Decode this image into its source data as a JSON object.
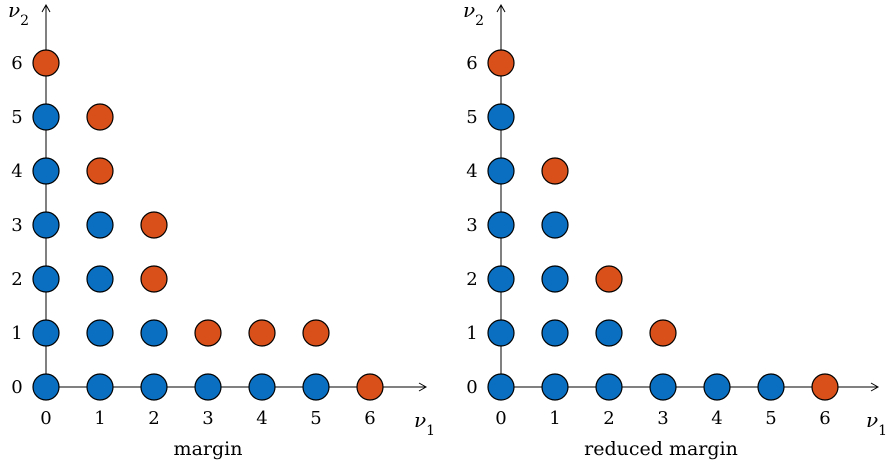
{
  "colors": {
    "interior": "#0a6fc0",
    "boundary": "#d9501a"
  },
  "panels": [
    {
      "caption": "margin",
      "x_axis_label": "ν",
      "x_axis_sub": "1",
      "y_axis_label": "ν",
      "y_axis_sub": "2",
      "x_ticks": [
        "0",
        "1",
        "2",
        "3",
        "4",
        "5",
        "6"
      ],
      "y_ticks": [
        "0",
        "1",
        "2",
        "3",
        "4",
        "5",
        "6"
      ],
      "points": [
        {
          "x": 0,
          "y": 0,
          "kind": "interior"
        },
        {
          "x": 1,
          "y": 0,
          "kind": "interior"
        },
        {
          "x": 2,
          "y": 0,
          "kind": "interior"
        },
        {
          "x": 3,
          "y": 0,
          "kind": "interior"
        },
        {
          "x": 4,
          "y": 0,
          "kind": "interior"
        },
        {
          "x": 5,
          "y": 0,
          "kind": "interior"
        },
        {
          "x": 6,
          "y": 0,
          "kind": "boundary"
        },
        {
          "x": 0,
          "y": 1,
          "kind": "interior"
        },
        {
          "x": 1,
          "y": 1,
          "kind": "interior"
        },
        {
          "x": 2,
          "y": 1,
          "kind": "interior"
        },
        {
          "x": 3,
          "y": 1,
          "kind": "boundary"
        },
        {
          "x": 4,
          "y": 1,
          "kind": "boundary"
        },
        {
          "x": 5,
          "y": 1,
          "kind": "boundary"
        },
        {
          "x": 0,
          "y": 2,
          "kind": "interior"
        },
        {
          "x": 1,
          "y": 2,
          "kind": "interior"
        },
        {
          "x": 2,
          "y": 2,
          "kind": "boundary"
        },
        {
          "x": 0,
          "y": 3,
          "kind": "interior"
        },
        {
          "x": 1,
          "y": 3,
          "kind": "interior"
        },
        {
          "x": 2,
          "y": 3,
          "kind": "boundary"
        },
        {
          "x": 0,
          "y": 4,
          "kind": "interior"
        },
        {
          "x": 1,
          "y": 4,
          "kind": "boundary"
        },
        {
          "x": 0,
          "y": 5,
          "kind": "interior"
        },
        {
          "x": 1,
          "y": 5,
          "kind": "boundary"
        },
        {
          "x": 0,
          "y": 6,
          "kind": "boundary"
        }
      ]
    },
    {
      "caption": "reduced margin",
      "x_axis_label": "ν",
      "x_axis_sub": "1",
      "y_axis_label": "ν",
      "y_axis_sub": "2",
      "x_ticks": [
        "0",
        "1",
        "2",
        "3",
        "4",
        "5",
        "6"
      ],
      "y_ticks": [
        "0",
        "1",
        "2",
        "3",
        "4",
        "5",
        "6"
      ],
      "points": [
        {
          "x": 0,
          "y": 0,
          "kind": "interior"
        },
        {
          "x": 1,
          "y": 0,
          "kind": "interior"
        },
        {
          "x": 2,
          "y": 0,
          "kind": "interior"
        },
        {
          "x": 3,
          "y": 0,
          "kind": "interior"
        },
        {
          "x": 4,
          "y": 0,
          "kind": "interior"
        },
        {
          "x": 5,
          "y": 0,
          "kind": "interior"
        },
        {
          "x": 6,
          "y": 0,
          "kind": "boundary"
        },
        {
          "x": 0,
          "y": 1,
          "kind": "interior"
        },
        {
          "x": 1,
          "y": 1,
          "kind": "interior"
        },
        {
          "x": 2,
          "y": 1,
          "kind": "interior"
        },
        {
          "x": 3,
          "y": 1,
          "kind": "boundary"
        },
        {
          "x": 0,
          "y": 2,
          "kind": "interior"
        },
        {
          "x": 1,
          "y": 2,
          "kind": "interior"
        },
        {
          "x": 2,
          "y": 2,
          "kind": "boundary"
        },
        {
          "x": 0,
          "y": 3,
          "kind": "interior"
        },
        {
          "x": 1,
          "y": 3,
          "kind": "interior"
        },
        {
          "x": 0,
          "y": 4,
          "kind": "interior"
        },
        {
          "x": 1,
          "y": 4,
          "kind": "boundary"
        },
        {
          "x": 0,
          "y": 5,
          "kind": "interior"
        },
        {
          "x": 0,
          "y": 6,
          "kind": "boundary"
        }
      ]
    }
  ]
}
